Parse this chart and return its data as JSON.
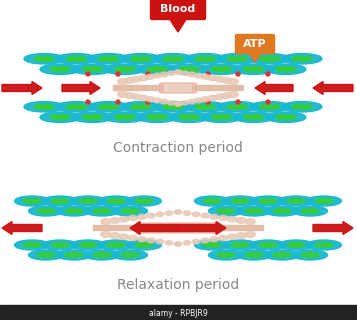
{
  "bg_color": "#ffffff",
  "title1": "Contraction period",
  "title2": "Relaxation period",
  "title_fontsize": 10,
  "title_color": "#888888",
  "blood_label": "Blood",
  "blood_color": "#cc1111",
  "atp_label": "ATP",
  "atp_color": "#e07820",
  "actin_outer": "#18b8d0",
  "actin_inner": "#33cc44",
  "myosin_head": "#e8c8b4",
  "myosin_rod": "#e0b8a0",
  "arrow_color": "#cc1111",
  "center_rod_color": "#e8b8a8",
  "small_dot_color": "#dd3333"
}
